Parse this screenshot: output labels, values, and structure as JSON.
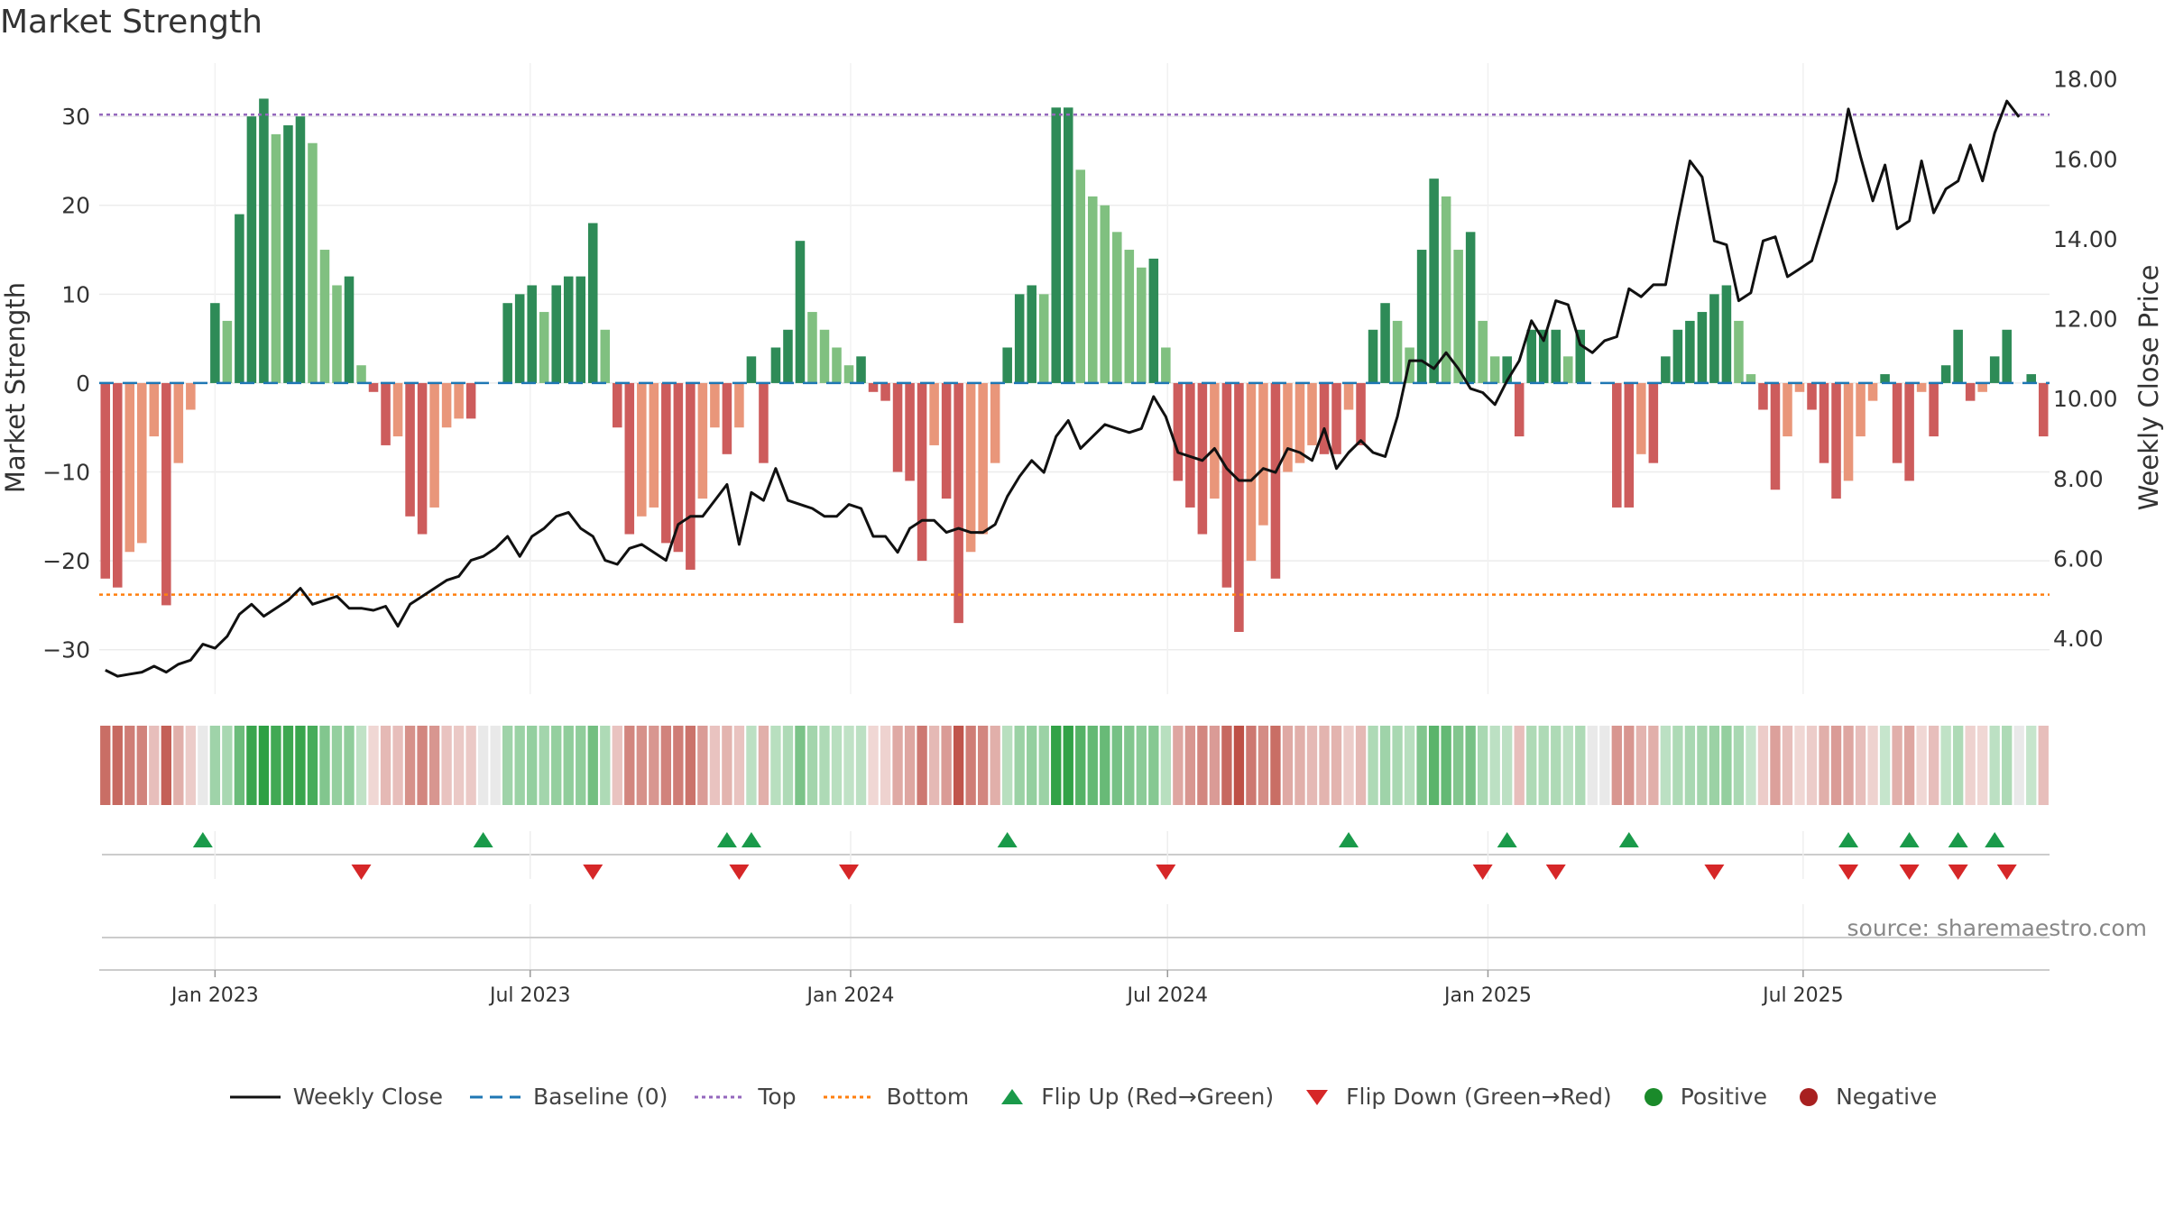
{
  "title": "Market Strength",
  "source": "source: sharemaestro.com",
  "colors": {
    "pos_dark": "#2e8b57",
    "pos_light": "#80c080",
    "neg_dark": "#cd5c5c",
    "neg_light": "#e9967a",
    "line": "#111111",
    "baseline": "#1f77b4",
    "top": "#9467bd",
    "bottom": "#ff7f0e",
    "flip_up": "#1a9a4a",
    "flip_down": "#d62728"
  },
  "chart_data": {
    "type": "bar+line",
    "title": "Market Strength",
    "ylabel_left": "Market Strength",
    "ylabel_right": "Weekly Close Price",
    "ylim_left": [
      -35,
      36
    ],
    "ylim_right": [
      2.6,
      18.4
    ],
    "yticks_left": [
      -30,
      -20,
      -10,
      0,
      10,
      20,
      30
    ],
    "yticks_left_labels": [
      "−30",
      "−20",
      "−10",
      "0",
      "10",
      "20",
      "30"
    ],
    "yticks_right": [
      4,
      6,
      8,
      10,
      12,
      14,
      16,
      18
    ],
    "yticks_right_labels": [
      "4.00",
      "6.00",
      "8.00",
      "10.00",
      "12.00",
      "14.00",
      "16.00",
      "18.00"
    ],
    "top_level": 30.2,
    "bottom_level": -23.8,
    "x_start": "2022-10-30",
    "x_step_days": 7,
    "x_ticks": [
      {
        "date": "2023-01-01",
        "label": "Jan 2023"
      },
      {
        "date": "2023-07-01",
        "label": "Jul 2023"
      },
      {
        "date": "2024-01-01",
        "label": "Jan 2024"
      },
      {
        "date": "2024-07-01",
        "label": "Jul 2024"
      },
      {
        "date": "2025-01-01",
        "label": "Jan 2025"
      },
      {
        "date": "2025-07-01",
        "label": "Jul 2025"
      }
    ],
    "strength": [
      -22,
      -23,
      -19,
      -18,
      -6,
      -25,
      -9,
      -3,
      0,
      9,
      7,
      19,
      30,
      32,
      28,
      29,
      30,
      27,
      15,
      11,
      12,
      2,
      -1,
      -7,
      -6,
      -15,
      -17,
      -14,
      -5,
      -4,
      -4,
      0,
      0,
      9,
      10,
      11,
      8,
      11,
      12,
      12,
      18,
      6,
      -5,
      -17,
      -15,
      -14,
      -18,
      -19,
      -21,
      -13,
      -5,
      -8,
      -5,
      3,
      -9,
      4,
      6,
      16,
      8,
      6,
      4,
      2,
      3,
      -1,
      -2,
      -10,
      -11,
      -20,
      -7,
      -13,
      -27,
      -19,
      -17,
      -9,
      4,
      10,
      11,
      10,
      31,
      31,
      24,
      21,
      20,
      17,
      15,
      13,
      14,
      4,
      -11,
      -14,
      -17,
      -13,
      -23,
      -28,
      -20,
      -16,
      -22,
      -10,
      -9,
      -7,
      -8,
      -8,
      -3,
      -7,
      6,
      9,
      7,
      4,
      15,
      23,
      21,
      15,
      17,
      7,
      3,
      3,
      -6,
      6,
      6,
      6,
      3,
      6,
      0,
      0,
      -14,
      -14,
      -8,
      -9,
      3,
      6,
      7,
      8,
      10,
      11,
      7,
      1,
      -3,
      -12,
      -6,
      -1,
      -3,
      -9,
      -13,
      -11,
      -6,
      -2,
      1,
      -9,
      -11,
      -1,
      -6,
      2,
      6,
      -2,
      -1,
      3,
      6,
      0,
      1,
      -6
    ],
    "weekly_close": [
      3.2,
      3.05,
      3.1,
      3.15,
      3.3,
      3.15,
      3.35,
      3.45,
      3.85,
      3.75,
      4.05,
      4.6,
      4.85,
      4.55,
      4.75,
      4.95,
      5.25,
      4.85,
      4.95,
      5.05,
      4.75,
      4.75,
      4.7,
      4.8,
      4.3,
      4.85,
      5.05,
      5.25,
      5.45,
      5.55,
      5.95,
      6.05,
      6.25,
      6.55,
      6.05,
      6.55,
      6.75,
      7.05,
      7.15,
      6.75,
      6.55,
      5.95,
      5.85,
      6.25,
      6.35,
      6.15,
      5.95,
      6.85,
      7.05,
      7.05,
      7.45,
      7.85,
      6.35,
      7.65,
      7.45,
      8.25,
      7.45,
      7.35,
      7.25,
      7.05,
      7.05,
      7.35,
      7.25,
      6.55,
      6.55,
      6.15,
      6.75,
      6.95,
      6.95,
      6.65,
      6.75,
      6.65,
      6.65,
      6.85,
      7.55,
      8.05,
      8.45,
      8.15,
      9.05,
      9.45,
      8.75,
      9.05,
      9.35,
      9.25,
      9.15,
      9.25,
      10.05,
      9.55,
      8.65,
      8.55,
      8.45,
      8.75,
      8.25,
      7.95,
      7.95,
      8.25,
      8.15,
      8.75,
      8.65,
      8.45,
      9.25,
      8.25,
      8.65,
      8.95,
      8.65,
      8.55,
      9.55,
      10.95,
      10.95,
      10.75,
      11.15,
      10.75,
      10.25,
      10.15,
      9.85,
      10.45,
      10.95,
      11.95,
      11.45,
      12.45,
      12.35,
      11.35,
      11.15,
      11.45,
      11.55,
      12.75,
      12.55,
      12.85,
      12.85,
      14.45,
      15.95,
      15.55,
      13.95,
      13.85,
      12.45,
      12.65,
      13.95,
      14.05,
      13.05,
      13.25,
      13.45,
      14.45,
      15.45,
      17.25,
      16.05,
      14.95,
      15.85,
      14.25,
      14.45,
      15.95,
      14.65,
      15.25,
      15.45,
      16.35,
      15.45,
      16.65,
      17.45,
      17.05
    ],
    "flip_up_labels": [
      "Flip Up",
      "Flip Up",
      "Flip Up",
      "Flip Up",
      "Flip Up",
      "Flip Up",
      "Flip Up",
      "Flip Up",
      "Flip Up",
      "Flip Up",
      "Flip Up",
      "Flip Up"
    ],
    "flip_up_weeks": [
      8,
      31,
      51,
      53,
      74,
      102,
      115,
      125,
      143,
      148,
      152,
      155
    ],
    "flip_down_weeks": [
      21,
      40,
      52,
      61,
      87,
      113,
      119,
      132,
      143,
      148,
      152,
      156
    ]
  },
  "x_tick_labels": [
    "Jan 2023",
    "Jul 2023",
    "Jan 2024",
    "Jul 2024",
    "Jan 2025",
    "Jul 2025"
  ],
  "legend": {
    "weekly_close": "Weekly Close",
    "baseline": "Baseline (0)",
    "top": "Top",
    "bottom": "Bottom",
    "flip_up": "Flip Up (Red→Green)",
    "flip_down": "Flip Down (Green→Red)",
    "positive": "Positive",
    "negative": "Negative"
  }
}
